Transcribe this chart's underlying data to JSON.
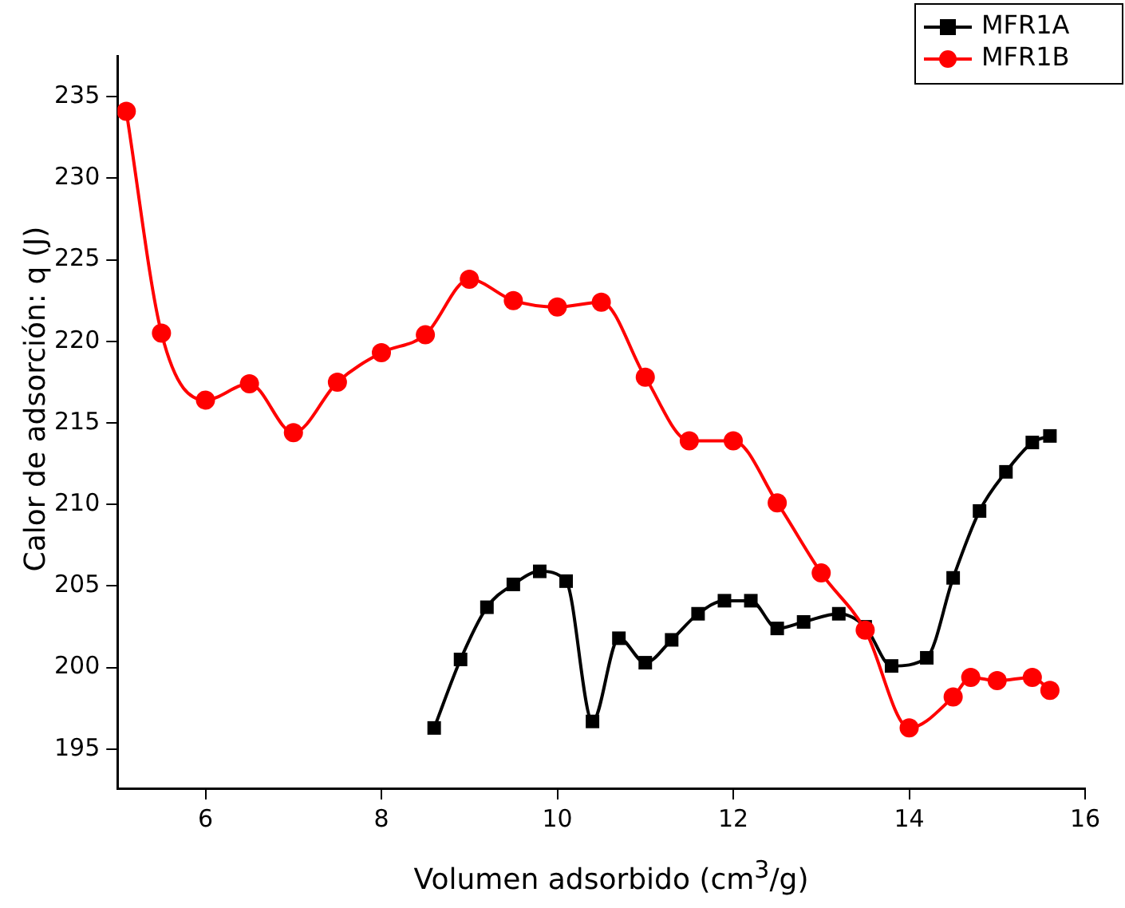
{
  "chart_data": {
    "type": "line",
    "xlabel": "Volumen adsorbido (cm$^{3}$/g)",
    "ylabel": "Calor de adsorción: q (J)",
    "xlim": [
      5,
      16
    ],
    "xticks": [
      6,
      8,
      10,
      12,
      14,
      16
    ],
    "ylim": [
      192.6,
      237.5
    ],
    "yticks": [
      195,
      200,
      205,
      210,
      215,
      220,
      225,
      230,
      235
    ],
    "grid": false,
    "legend": "top right",
    "line_style": "solid",
    "series": [
      {
        "name": "MFR1A",
        "color": "#000000",
        "marker": "square",
        "x": [
          8.6,
          8.9,
          9.2,
          9.5,
          9.8,
          10.1,
          10.4,
          10.7,
          11,
          11.3,
          11.6,
          11.9,
          12.2,
          12.5,
          12.8,
          13.2,
          13.5,
          13.8,
          14.2,
          14.5,
          14.8,
          15.1,
          15.4,
          15.6
        ],
        "values": [
          196.3,
          200.5,
          203.7,
          205.1,
          205.9,
          205.3,
          196.7,
          201.8,
          200.3,
          201.7,
          203.3,
          204.1,
          204.1,
          202.4,
          202.8,
          203.3,
          202.5,
          200.1,
          200.6,
          205.5,
          209.6,
          212,
          213.8,
          214.2
        ]
      },
      {
        "name": "MFR1B",
        "color": "#ff0000",
        "marker": "circle",
        "x": [
          5.1,
          5.5,
          6,
          6.5,
          7,
          7.5,
          8,
          8.5,
          9,
          9.5,
          10,
          10.5,
          11,
          11.5,
          12,
          12.5,
          13,
          13.5,
          14,
          14.5,
          14.7,
          15,
          15.4,
          15.6
        ],
        "values": [
          234.1,
          220.5,
          216.4,
          217.4,
          214.4,
          217.5,
          219.3,
          220.4,
          223.8,
          222.5,
          222.1,
          222.4,
          217.8,
          213.9,
          213.9,
          210.1,
          205.8,
          202.3,
          196.3,
          198.2,
          199.4,
          199.2,
          199.4,
          198.6
        ]
      }
    ]
  }
}
